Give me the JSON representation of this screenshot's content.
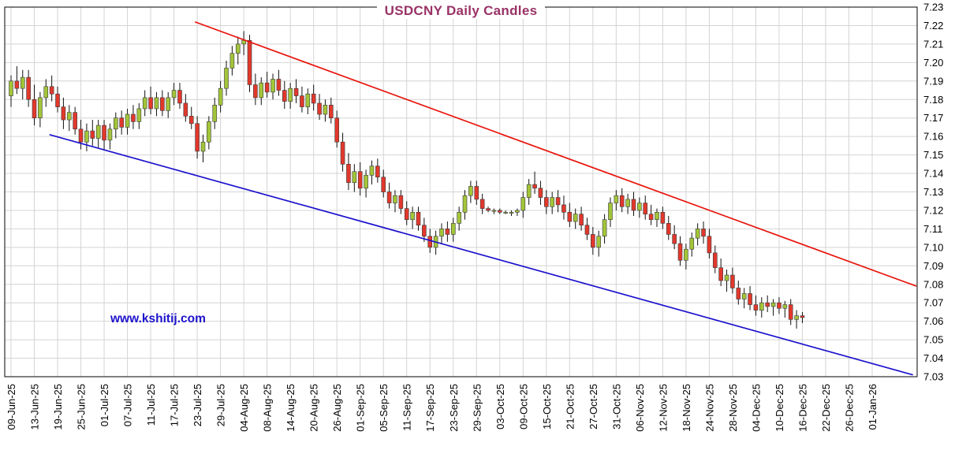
{
  "title": "USDCNY Daily Candles",
  "watermark": "www.kshitij.com",
  "colors": {
    "title": "#993366",
    "watermark": "#1d12cc",
    "up_candle": "#a3c539",
    "down_candle": "#e2382c",
    "candle_stroke": "#3a3a3a",
    "wick": "#111111",
    "grid": "#d4d4d4",
    "border": "#000000",
    "axis_text": "#000000"
  },
  "chart_data": {
    "type": "candlestick",
    "title": "USDCNY Daily Candles",
    "legend": "none",
    "grid": true,
    "y_axis": {
      "min": 7.03,
      "max": 7.23,
      "step": 0.01,
      "side": "right",
      "ticks": [
        "7.23",
        "7.22",
        "7.21",
        "7.20",
        "7.19",
        "7.18",
        "7.17",
        "7.16",
        "7.15",
        "7.14",
        "7.13",
        "7.12",
        "7.11",
        "7.10",
        "7.09",
        "7.08",
        "7.07",
        "7.06",
        "7.05",
        "7.04",
        "7.03"
      ]
    },
    "x_axis": {
      "tick_every_n_days": 4,
      "total_day_slots": 149,
      "tick_labels": [
        "09-Jun-25",
        "13-Jun-25",
        "19-Jun-25",
        "25-Jun-25",
        "01-Jul-25",
        "07-Jul-25",
        "11-Jul-25",
        "17-Jul-25",
        "23-Jul-25",
        "29-Jul-25",
        "04-Aug-25",
        "08-Aug-25",
        "14-Aug-25",
        "20-Aug-25",
        "26-Aug-25",
        "01-Sep-25",
        "05-Sep-25",
        "11-Sep-25",
        "17-Sep-25",
        "23-Sep-25",
        "29-Sep-25",
        "03-Oct-25",
        "09-Oct-25",
        "15-Oct-25",
        "21-Oct-25",
        "27-Oct-25",
        "31-Oct-25",
        "06-Nov-25",
        "12-Nov-25",
        "18-Nov-25",
        "24-Nov-25",
        "28-Nov-25",
        "04-Dec-25",
        "10-Dec-25",
        "16-Dec-25",
        "22-Dec-25",
        "26-Dec-25",
        "01-Jan-26"
      ]
    },
    "ohlc": [
      [
        "09-Jun-25",
        7.182,
        7.193,
        7.176,
        7.19
      ],
      [
        "10-Jun-25",
        7.19,
        7.198,
        7.183,
        7.186
      ],
      [
        "11-Jun-25",
        7.186,
        7.196,
        7.18,
        7.192
      ],
      [
        "12-Jun-25",
        7.192,
        7.196,
        7.176,
        7.18
      ],
      [
        "13-Jun-25",
        7.18,
        7.188,
        7.166,
        7.17
      ],
      [
        "16-Jun-25",
        7.17,
        7.184,
        7.165,
        7.181
      ],
      [
        "17-Jun-25",
        7.181,
        7.191,
        7.176,
        7.187
      ],
      [
        "18-Jun-25",
        7.187,
        7.193,
        7.179,
        7.183
      ],
      [
        "19-Jun-25",
        7.183,
        7.187,
        7.173,
        7.176
      ],
      [
        "20-Jun-25",
        7.176,
        7.181,
        7.164,
        7.169
      ],
      [
        "23-Jun-25",
        7.169,
        7.177,
        7.163,
        7.173
      ],
      [
        "24-Jun-25",
        7.173,
        7.176,
        7.161,
        7.164
      ],
      [
        "25-Jun-25",
        7.164,
        7.169,
        7.153,
        7.157
      ],
      [
        "26-Jun-25",
        7.157,
        7.167,
        7.152,
        7.163
      ],
      [
        "27-Jun-25",
        7.163,
        7.169,
        7.155,
        7.159
      ],
      [
        "30-Jun-25",
        7.159,
        7.169,
        7.154,
        7.166
      ],
      [
        "01-Jul-25",
        7.166,
        7.169,
        7.153,
        7.158
      ],
      [
        "02-Jul-25",
        7.158,
        7.167,
        7.153,
        7.164
      ],
      [
        "03-Jul-25",
        7.164,
        7.173,
        7.159,
        7.17
      ],
      [
        "04-Jul-25",
        7.17,
        7.174,
        7.161,
        7.165
      ],
      [
        "07-Jul-25",
        7.165,
        7.175,
        7.161,
        7.172
      ],
      [
        "08-Jul-25",
        7.172,
        7.177,
        7.164,
        7.168
      ],
      [
        "09-Jul-25",
        7.168,
        7.178,
        7.164,
        7.175
      ],
      [
        "10-Jul-25",
        7.175,
        7.185,
        7.171,
        7.181
      ],
      [
        "11-Jul-25",
        7.181,
        7.187,
        7.172,
        7.175
      ],
      [
        "14-Jul-25",
        7.175,
        7.184,
        7.171,
        7.181
      ],
      [
        "15-Jul-25",
        7.181,
        7.185,
        7.171,
        7.174
      ],
      [
        "16-Jul-25",
        7.174,
        7.184,
        7.17,
        7.181
      ],
      [
        "17-Jul-25",
        7.181,
        7.189,
        7.177,
        7.185
      ],
      [
        "18-Jul-25",
        7.185,
        7.189,
        7.175,
        7.178
      ],
      [
        "21-Jul-25",
        7.178,
        7.183,
        7.168,
        7.171
      ],
      [
        "22-Jul-25",
        7.171,
        7.176,
        7.164,
        7.167
      ],
      [
        "23-Jul-25",
        7.167,
        7.171,
        7.148,
        7.152
      ],
      [
        "24-Jul-25",
        7.152,
        7.161,
        7.146,
        7.157
      ],
      [
        "25-Jul-25",
        7.157,
        7.171,
        7.153,
        7.168
      ],
      [
        "28-Jul-25",
        7.168,
        7.181,
        7.164,
        7.177
      ],
      [
        "29-Jul-25",
        7.177,
        7.19,
        7.173,
        7.186
      ],
      [
        "30-Jul-25",
        7.186,
        7.201,
        7.182,
        7.197
      ],
      [
        "31-Jul-25",
        7.197,
        7.209,
        7.193,
        7.205
      ],
      [
        "01-Aug-25",
        7.205,
        7.214,
        7.199,
        7.21
      ],
      [
        "04-Aug-25",
        7.21,
        7.217,
        7.204,
        7.212
      ],
      [
        "05-Aug-25",
        7.212,
        7.215,
        7.184,
        7.188
      ],
      [
        "06-Aug-25",
        7.188,
        7.194,
        7.177,
        7.181
      ],
      [
        "07-Aug-25",
        7.181,
        7.192,
        7.177,
        7.189
      ],
      [
        "08-Aug-25",
        7.189,
        7.195,
        7.181,
        7.184
      ],
      [
        "11-Aug-25",
        7.184,
        7.194,
        7.18,
        7.191
      ],
      [
        "12-Aug-25",
        7.191,
        7.196,
        7.182,
        7.185
      ],
      [
        "13-Aug-25",
        7.185,
        7.19,
        7.175,
        7.179
      ],
      [
        "14-Aug-25",
        7.179,
        7.189,
        7.175,
        7.186
      ],
      [
        "15-Aug-25",
        7.186,
        7.191,
        7.178,
        7.182
      ],
      [
        "18-Aug-25",
        7.182,
        7.187,
        7.173,
        7.176
      ],
      [
        "19-Aug-25",
        7.176,
        7.186,
        7.172,
        7.183
      ],
      [
        "20-Aug-25",
        7.183,
        7.188,
        7.174,
        7.178
      ],
      [
        "21-Aug-25",
        7.178,
        7.183,
        7.169,
        7.172
      ],
      [
        "22-Aug-25",
        7.172,
        7.18,
        7.168,
        7.177
      ],
      [
        "25-Aug-25",
        7.177,
        7.181,
        7.167,
        7.17
      ],
      [
        "26-Aug-25",
        7.17,
        7.174,
        7.154,
        7.157
      ],
      [
        "27-Aug-25",
        7.157,
        7.162,
        7.141,
        7.145
      ],
      [
        "28-Aug-25",
        7.145,
        7.151,
        7.131,
        7.135
      ],
      [
        "29-Aug-25",
        7.135,
        7.145,
        7.13,
        7.141
      ],
      [
        "01-Sep-25",
        7.141,
        7.146,
        7.128,
        7.132
      ],
      [
        "02-Sep-25",
        7.132,
        7.142,
        7.127,
        7.139
      ],
      [
        "03-Sep-25",
        7.139,
        7.147,
        7.134,
        7.144
      ],
      [
        "04-Sep-25",
        7.144,
        7.148,
        7.135,
        7.138
      ],
      [
        "05-Sep-25",
        7.138,
        7.142,
        7.127,
        7.13
      ],
      [
        "08-Sep-25",
        7.13,
        7.135,
        7.121,
        7.124
      ],
      [
        "09-Sep-25",
        7.124,
        7.131,
        7.119,
        7.128
      ],
      [
        "10-Sep-25",
        7.128,
        7.131,
        7.118,
        7.121
      ],
      [
        "11-Sep-25",
        7.121,
        7.125,
        7.112,
        7.115
      ],
      [
        "12-Sep-25",
        7.115,
        7.122,
        7.11,
        7.119
      ],
      [
        "15-Sep-25",
        7.119,
        7.122,
        7.109,
        7.112
      ],
      [
        "16-Sep-25",
        7.112,
        7.116,
        7.103,
        7.106
      ],
      [
        "17-Sep-25",
        7.106,
        7.11,
        7.097,
        7.1
      ],
      [
        "18-Sep-25",
        7.1,
        7.109,
        7.096,
        7.106
      ],
      [
        "19-Sep-25",
        7.106,
        7.113,
        7.102,
        7.11
      ],
      [
        "22-Sep-25",
        7.11,
        7.114,
        7.103,
        7.107
      ],
      [
        "23-Sep-25",
        7.107,
        7.116,
        7.103,
        7.113
      ],
      [
        "24-Sep-25",
        7.113,
        7.122,
        7.109,
        7.119
      ],
      [
        "25-Sep-25",
        7.119,
        7.131,
        7.115,
        7.128
      ],
      [
        "26-Sep-25",
        7.128,
        7.136,
        7.124,
        7.133
      ],
      [
        "29-Sep-25",
        7.133,
        7.136,
        7.123,
        7.126
      ],
      [
        "30-Sep-25",
        7.126,
        7.129,
        7.118,
        7.121
      ],
      [
        "01-Oct-25",
        7.121,
        7.122,
        7.119,
        7.12
      ],
      [
        "02-Oct-25",
        7.12,
        7.121,
        7.118,
        7.12
      ],
      [
        "03-Oct-25",
        7.12,
        7.121,
        7.118,
        7.119
      ],
      [
        "06-Oct-25",
        7.119,
        7.12,
        7.118,
        7.119
      ],
      [
        "07-Oct-25",
        7.119,
        7.12,
        7.117,
        7.119
      ],
      [
        "08-Oct-25",
        7.119,
        7.121,
        7.117,
        7.12
      ],
      [
        "09-Oct-25",
        7.12,
        7.13,
        7.116,
        7.127
      ],
      [
        "10-Oct-25",
        7.127,
        7.137,
        7.123,
        7.134
      ],
      [
        "13-Oct-25",
        7.134,
        7.141,
        7.129,
        7.132
      ],
      [
        "14-Oct-25",
        7.132,
        7.136,
        7.123,
        7.127
      ],
      [
        "15-Oct-25",
        7.127,
        7.131,
        7.118,
        7.122
      ],
      [
        "16-Oct-25",
        7.122,
        7.13,
        7.118,
        7.127
      ],
      [
        "17-Oct-25",
        7.127,
        7.131,
        7.119,
        7.123
      ],
      [
        "20-Oct-25",
        7.123,
        7.128,
        7.115,
        7.119
      ],
      [
        "21-Oct-25",
        7.119,
        7.124,
        7.111,
        7.114
      ],
      [
        "22-Oct-25",
        7.114,
        7.121,
        7.11,
        7.118
      ],
      [
        "23-Oct-25",
        7.118,
        7.122,
        7.109,
        7.112
      ],
      [
        "24-Oct-25",
        7.112,
        7.116,
        7.104,
        7.107
      ],
      [
        "27-Oct-25",
        7.107,
        7.111,
        7.096,
        7.1
      ],
      [
        "28-Oct-25",
        7.1,
        7.109,
        7.095,
        7.106
      ],
      [
        "29-Oct-25",
        7.106,
        7.118,
        7.102,
        7.115
      ],
      [
        "30-Oct-25",
        7.115,
        7.127,
        7.111,
        7.124
      ],
      [
        "31-Oct-25",
        7.124,
        7.131,
        7.12,
        7.128
      ],
      [
        "03-Nov-25",
        7.128,
        7.132,
        7.119,
        7.122
      ],
      [
        "04-Nov-25",
        7.122,
        7.129,
        7.118,
        7.126
      ],
      [
        "05-Nov-25",
        7.126,
        7.13,
        7.117,
        7.12
      ],
      [
        "06-Nov-25",
        7.12,
        7.127,
        7.116,
        7.124
      ],
      [
        "07-Nov-25",
        7.124,
        7.128,
        7.115,
        7.118
      ],
      [
        "10-Nov-25",
        7.118,
        7.123,
        7.112,
        7.115
      ],
      [
        "11-Nov-25",
        7.115,
        7.121,
        7.111,
        7.119
      ],
      [
        "12-Nov-25",
        7.119,
        7.122,
        7.11,
        7.113
      ],
      [
        "13-Nov-25",
        7.113,
        7.117,
        7.104,
        7.107
      ],
      [
        "14-Nov-25",
        7.107,
        7.112,
        7.099,
        7.102
      ],
      [
        "17-Nov-25",
        7.102,
        7.106,
        7.09,
        7.093
      ],
      [
        "18-Nov-25",
        7.093,
        7.102,
        7.088,
        7.099
      ],
      [
        "19-Nov-25",
        7.099,
        7.108,
        7.095,
        7.105
      ],
      [
        "20-Nov-25",
        7.105,
        7.113,
        7.101,
        7.11
      ],
      [
        "21-Nov-25",
        7.11,
        7.114,
        7.102,
        7.106
      ],
      [
        "24-Nov-25",
        7.106,
        7.11,
        7.094,
        7.097
      ],
      [
        "25-Nov-25",
        7.097,
        7.101,
        7.086,
        7.089
      ],
      [
        "26-Nov-25",
        7.089,
        7.094,
        7.079,
        7.082
      ],
      [
        "27-Nov-25",
        7.082,
        7.088,
        7.076,
        7.085
      ],
      [
        "28-Nov-25",
        7.085,
        7.089,
        7.075,
        7.078
      ],
      [
        "01-Dec-25",
        7.078,
        7.082,
        7.069,
        7.072
      ],
      [
        "02-Dec-25",
        7.072,
        7.078,
        7.067,
        7.075
      ],
      [
        "03-Dec-25",
        7.075,
        7.079,
        7.066,
        7.069
      ],
      [
        "04-Dec-25",
        7.069,
        7.074,
        7.063,
        7.066
      ],
      [
        "05-Dec-25",
        7.066,
        7.073,
        7.062,
        7.07
      ],
      [
        "08-Dec-25",
        7.07,
        7.074,
        7.065,
        7.068
      ],
      [
        "09-Dec-25",
        7.068,
        7.072,
        7.063,
        7.07
      ],
      [
        "10-Dec-25",
        7.07,
        7.073,
        7.064,
        7.067
      ],
      [
        "11-Dec-25",
        7.067,
        7.071,
        7.062,
        7.069
      ],
      [
        "12-Dec-25",
        7.069,
        7.072,
        7.058,
        7.061
      ],
      [
        "15-Dec-25",
        7.061,
        7.066,
        7.056,
        7.063
      ],
      [
        "16-Dec-25",
        7.063,
        7.065,
        7.059,
        7.062
      ]
    ],
    "trendlines": [
      {
        "name": "upper-channel-trendline",
        "color": "#e8150d",
        "from": {
          "day_index": 31.6,
          "price": 7.222
        },
        "to": {
          "day_index": 155.6,
          "price": 7.079
        }
      },
      {
        "name": "lower-channel-trendline",
        "color": "#1d12cc",
        "from": {
          "day_index": 6.6,
          "price": 7.161
        },
        "to": {
          "day_index": 155.0,
          "price": 7.031
        }
      }
    ]
  }
}
